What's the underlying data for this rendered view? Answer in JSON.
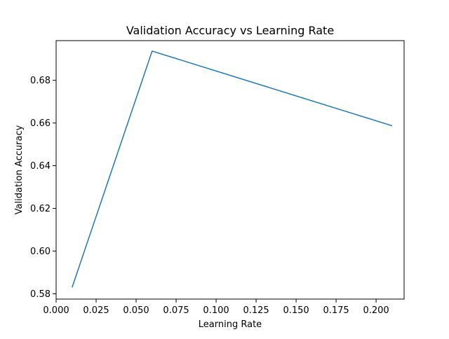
{
  "chart_data": {
    "type": "line",
    "title": "Validation Accuracy vs Learning Rate",
    "xlabel": "Learning Rate",
    "ylabel": "Validation Accuracy",
    "xlim": [
      0.0,
      0.2175
    ],
    "ylim": [
      0.5775,
      0.6986
    ],
    "x_ticks": [
      "0.000",
      "0.025",
      "0.050",
      "0.075",
      "0.100",
      "0.125",
      "0.150",
      "0.175",
      "0.200"
    ],
    "y_ticks": [
      "0.58",
      "0.60",
      "0.62",
      "0.64",
      "0.66",
      "0.68"
    ],
    "grid": false,
    "series": [
      {
        "color": "#1f77b4",
        "x": [
          0.01,
          0.06,
          0.21
        ],
        "y": [
          0.583,
          0.6937,
          0.6587
        ]
      }
    ]
  }
}
